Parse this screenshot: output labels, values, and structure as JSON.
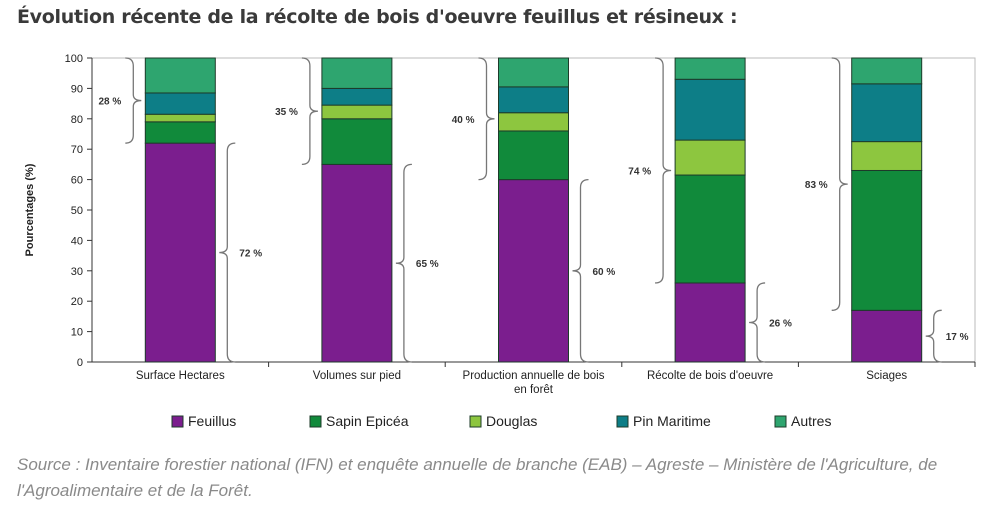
{
  "title": "Évolution récente de la récolte de bois d'oeuvre feuillus et résineux :",
  "source": "Source : Inventaire forestier national (IFN) et enquête annuelle de branche (EAB) – Agreste – Ministère de l'Agriculture, de l'Agroalimentaire et de la Forêt.",
  "chart_data": {
    "type": "bar",
    "stacked": true,
    "ylabel": "Pourcentages (%)",
    "xlabel": "",
    "ylim": [
      0,
      100
    ],
    "yticks": [
      0,
      10,
      20,
      30,
      40,
      50,
      60,
      70,
      80,
      90,
      100
    ],
    "categories": [
      [
        "Surface Hectares"
      ],
      [
        "Volumes sur pied"
      ],
      [
        "Production annuelle de bois",
        "en forêt"
      ],
      [
        "Récolte de bois d'oeuvre"
      ],
      [
        "Sciages"
      ]
    ],
    "series": [
      {
        "name": "Feuillus",
        "color": "#7b1e8e",
        "values": [
          72,
          65,
          60,
          26,
          17
        ]
      },
      {
        "name": "Sapin Epicéa",
        "color": "#118a3b",
        "values": [
          7,
          15,
          16,
          35.5,
          46
        ]
      },
      {
        "name": "Douglas",
        "color": "#8dc63f",
        "values": [
          2.5,
          4.5,
          6,
          11.5,
          9.5
        ]
      },
      {
        "name": "Pin Maritime",
        "color": "#0d7e87",
        "values": [
          7,
          5.5,
          8.5,
          20,
          19
        ]
      },
      {
        "name": "Autres",
        "color": "#2ea56f",
        "values": [
          11.5,
          10,
          9.5,
          7,
          8.5
        ]
      }
    ],
    "annotations": {
      "feuillus_share": [
        "72 %",
        "65 %",
        "60 %",
        "26 %",
        "17 %"
      ],
      "resineux_share": [
        "28 %",
        "35 %",
        "40 %",
        "74 %",
        "83 %"
      ]
    },
    "legend": "bottom"
  }
}
